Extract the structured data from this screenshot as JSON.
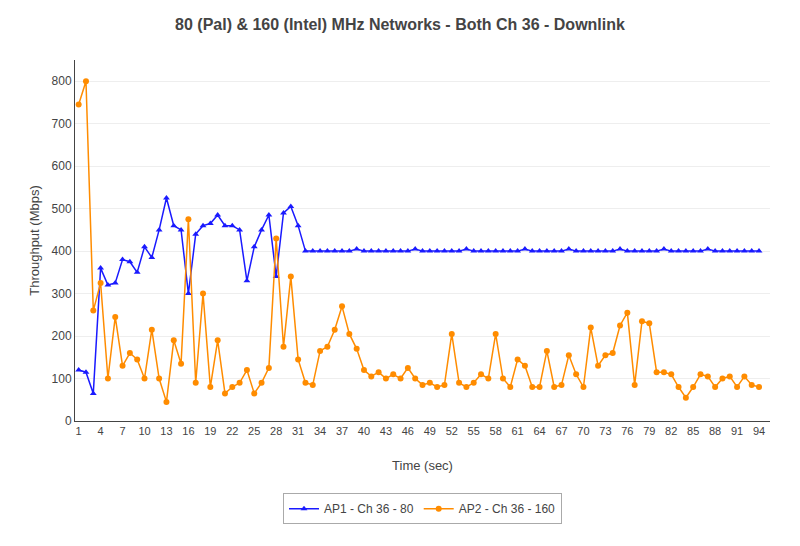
{
  "chart_data": {
    "type": "line",
    "title": "80 (Pal) & 160 (Intel) MHz Networks - Both Ch 36 - Downlink",
    "x_label": "Time (sec)",
    "y_label": "Throughput (Mbps)",
    "x": [
      1,
      2,
      3,
      4,
      5,
      6,
      7,
      8,
      9,
      10,
      11,
      12,
      13,
      14,
      15,
      16,
      17,
      18,
      19,
      20,
      21,
      22,
      23,
      24,
      25,
      26,
      27,
      28,
      29,
      30,
      31,
      32,
      33,
      34,
      35,
      36,
      37,
      38,
      39,
      40,
      41,
      42,
      43,
      44,
      45,
      46,
      47,
      48,
      49,
      50,
      51,
      52,
      53,
      54,
      55,
      56,
      57,
      58,
      59,
      60,
      61,
      62,
      63,
      64,
      65,
      66,
      67,
      68,
      69,
      70,
      71,
      72,
      73,
      74,
      75,
      76,
      77,
      78,
      79,
      80,
      81,
      82,
      83,
      84,
      85,
      86,
      87,
      88,
      89,
      90,
      91,
      92,
      93,
      94
    ],
    "series": [
      {
        "name": "AP1 - Ch 36 - 80",
        "color": "#1a1aff",
        "marker": "triangle-up",
        "values": [
          120,
          115,
          65,
          360,
          320,
          325,
          380,
          375,
          350,
          410,
          385,
          450,
          525,
          460,
          450,
          300,
          440,
          460,
          465,
          485,
          460,
          460,
          450,
          330,
          410,
          450,
          485,
          340,
          490,
          505,
          460,
          400,
          400,
          400,
          400,
          400,
          400,
          400,
          405,
          400,
          400,
          400,
          400,
          400,
          400,
          400,
          405,
          400,
          400,
          400,
          400,
          400,
          400,
          405,
          400,
          400,
          400,
          400,
          400,
          400,
          400,
          405,
          400,
          400,
          400,
          400,
          400,
          405,
          400,
          400,
          400,
          400,
          400,
          400,
          405,
          400,
          400,
          400,
          400,
          400,
          405,
          400,
          400,
          400,
          400,
          400,
          405,
          400,
          400,
          400,
          400,
          400,
          400,
          400
        ]
      },
      {
        "name": "AP2 - Ch 36 - 160",
        "color": "#ff8c00",
        "marker": "circle",
        "values": [
          745,
          800,
          260,
          325,
          100,
          245,
          130,
          160,
          145,
          100,
          215,
          100,
          45,
          190,
          135,
          475,
          90,
          300,
          80,
          190,
          65,
          80,
          90,
          120,
          65,
          90,
          125,
          430,
          175,
          340,
          145,
          90,
          85,
          165,
          175,
          215,
          270,
          205,
          170,
          120,
          105,
          115,
          100,
          110,
          100,
          125,
          100,
          85,
          90,
          80,
          85,
          205,
          90,
          80,
          90,
          110,
          100,
          205,
          100,
          80,
          145,
          130,
          80,
          80,
          165,
          80,
          85,
          155,
          110,
          80,
          220,
          130,
          155,
          160,
          225,
          255,
          85,
          235,
          230,
          115,
          115,
          110,
          80,
          55,
          80,
          110,
          105,
          80,
          100,
          105,
          80,
          105,
          85,
          80
        ]
      }
    ],
    "xlim": [
      0.5,
      95.5
    ],
    "xticks": [
      1,
      4,
      7,
      10,
      13,
      16,
      19,
      22,
      25,
      28,
      31,
      34,
      37,
      40,
      43,
      46,
      49,
      52,
      55,
      58,
      61,
      64,
      67,
      70,
      73,
      76,
      79,
      82,
      85,
      88,
      91,
      94
    ],
    "ylim": [
      0,
      850
    ],
    "yticks": [
      0,
      100,
      200,
      300,
      400,
      500,
      600,
      700,
      800
    ],
    "grid": "y",
    "legend": "bottom"
  }
}
